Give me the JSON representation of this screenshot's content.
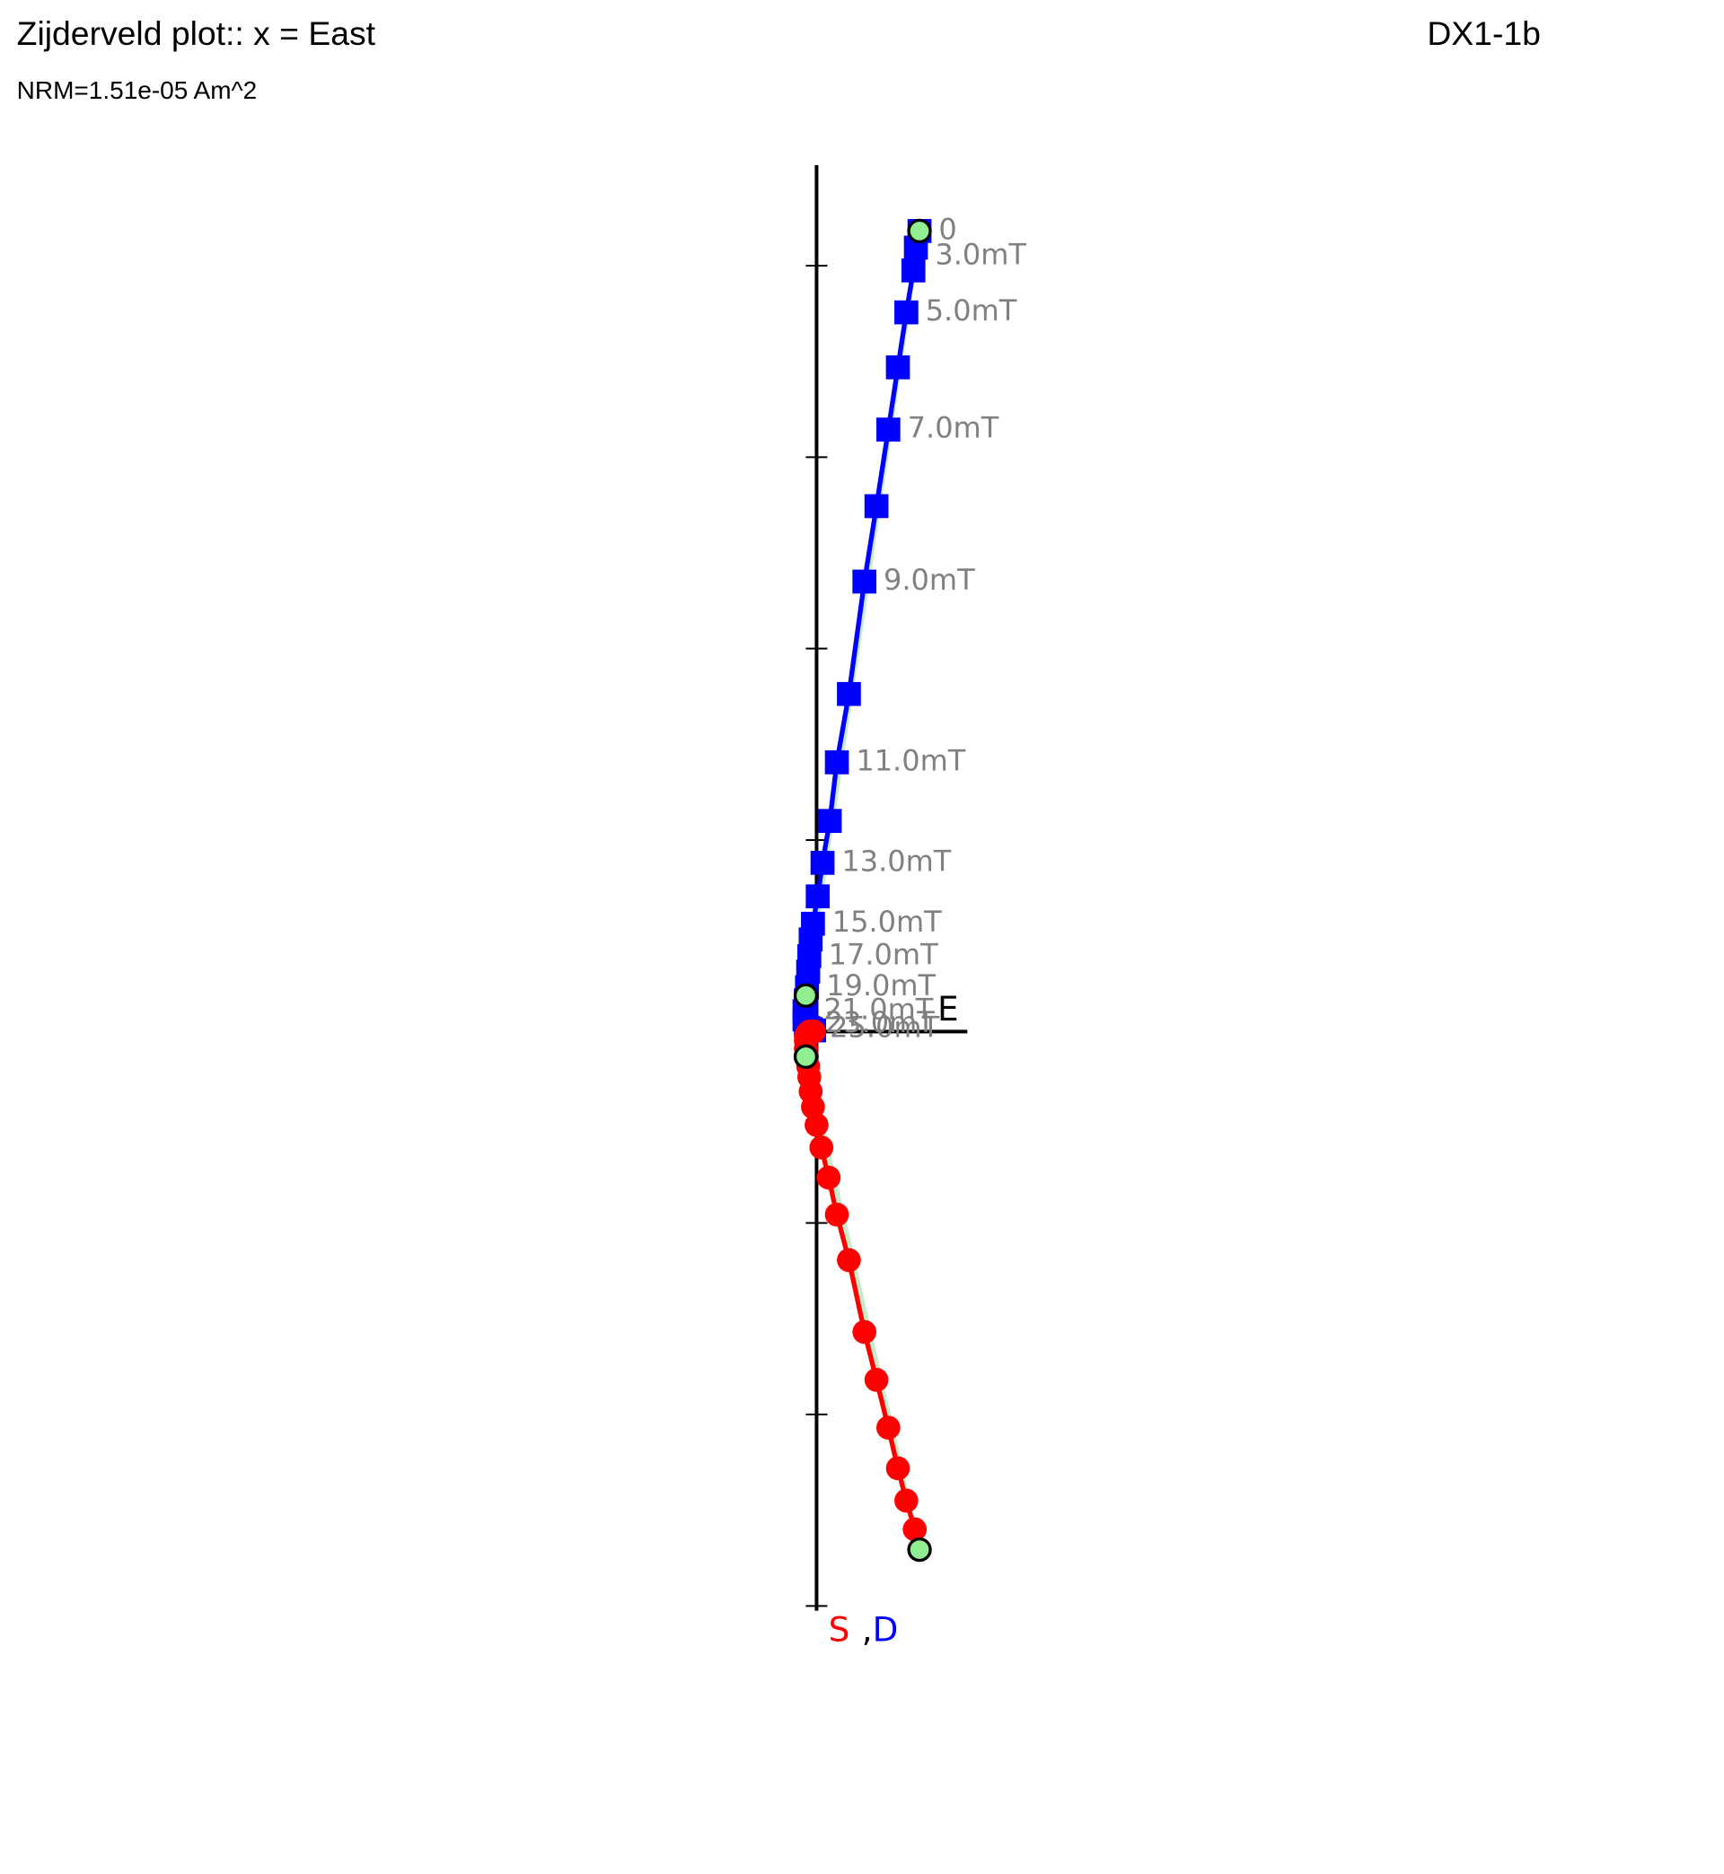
{
  "chart_data": {
    "type": "zijderveld",
    "title": "Zijderveld plot:: x = East",
    "sample": "DX1-1b",
    "subtitle": "NRM=1.51e-05 Am^2",
    "x_axis_label": "E",
    "y_axis_label": {
      "horizontal": "S",
      "separator": ",",
      "vertical": "D"
    },
    "xlim": [
      -0.088,
      0.788
    ],
    "ylim": [
      -3.025,
      4.525
    ],
    "yticks": [
      -3,
      -2,
      -1,
      0,
      1,
      2,
      3,
      4
    ],
    "series": [
      {
        "name": "D",
        "color": "#0000ff",
        "marker": "square",
        "x": [
          0.538,
          0.519,
          0.506,
          0.469,
          0.425,
          0.375,
          0.313,
          0.25,
          0.169,
          0.106,
          0.069,
          0.031,
          0.006,
          -0.019,
          -0.031,
          -0.038,
          -0.044,
          -0.05,
          -0.056,
          -0.063,
          -0.063,
          -0.056,
          -0.044,
          -0.031,
          -0.013
        ],
        "y": [
          4.181,
          4.094,
          3.975,
          3.756,
          3.469,
          3.144,
          2.744,
          2.35,
          1.763,
          1.406,
          1.1,
          0.881,
          0.706,
          0.563,
          0.481,
          0.394,
          0.313,
          0.231,
          0.163,
          0.106,
          0.063,
          0.038,
          0.019,
          0.013,
          0.006
        ],
        "labels": [
          "0",
          "3.0mT",
          null,
          "5.0mT",
          null,
          "7.0mT",
          null,
          "9.0mT",
          null,
          "11.0mT",
          null,
          "13.0mT",
          null,
          "15.0mT",
          null,
          "17.0mT",
          null,
          "19.0mT",
          null,
          "21.0mT",
          null,
          "23.0mT",
          null,
          "25.0mT",
          null
        ],
        "fit": {
          "x": [
            0.538,
            -0.056
          ],
          "y": [
            4.181,
            0.188
          ]
        }
      },
      {
        "name": "S",
        "color": "#ff0000",
        "marker": "circle",
        "x": [
          0.538,
          0.513,
          0.469,
          0.425,
          0.375,
          0.313,
          0.25,
          0.169,
          0.106,
          0.063,
          0.025,
          0,
          -0.019,
          -0.031,
          -0.038,
          -0.044,
          -0.05,
          -0.056,
          -0.056,
          -0.056,
          -0.05,
          -0.044,
          -0.038,
          -0.025,
          -0.013
        ],
        "y": [
          -2.706,
          -2.6,
          -2.45,
          -2.281,
          -2.069,
          -1.819,
          -1.569,
          -1.194,
          -0.956,
          -0.763,
          -0.606,
          -0.488,
          -0.394,
          -0.313,
          -0.238,
          -0.181,
          -0.131,
          -0.088,
          -0.05,
          -0.025,
          -0.013,
          -0.006,
          0,
          0,
          0
        ],
        "fit": {
          "x": [
            0.538,
            -0.056
          ],
          "y": [
            -2.706,
            -0.131
          ]
        }
      }
    ],
    "fit_line_color": "#c8eccb",
    "fit_point_color": "#90ee90",
    "point_label_color": "#808080"
  }
}
